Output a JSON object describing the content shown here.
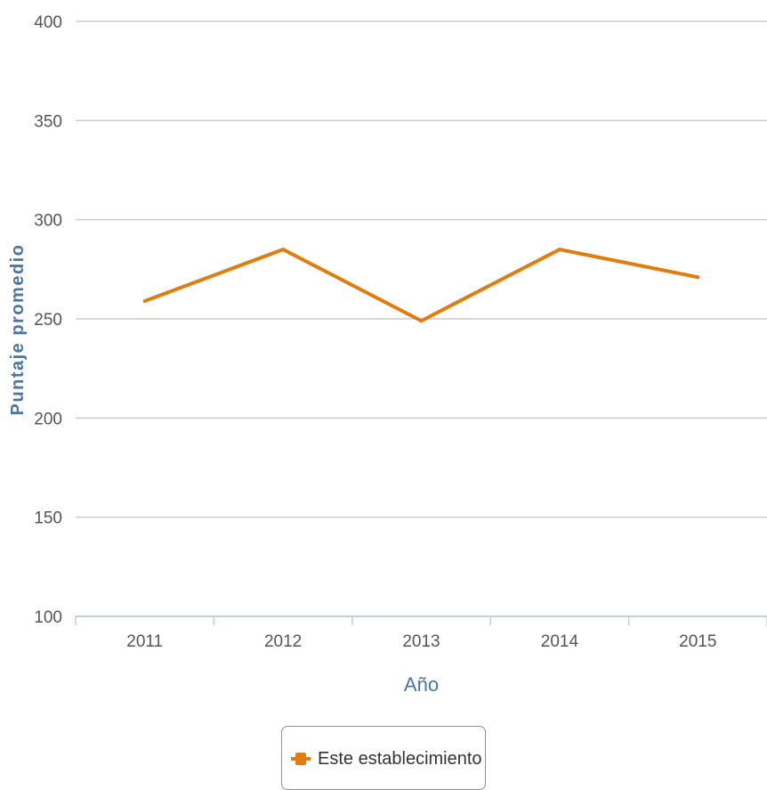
{
  "chart_data": {
    "type": "line",
    "title": "",
    "xlabel": "Año",
    "ylabel": "Puntaje promedio",
    "categories": [
      "2011",
      "2012",
      "2013",
      "2014",
      "2015"
    ],
    "ylim": [
      100,
      400
    ],
    "yticks": [
      "100",
      "150",
      "200",
      "250",
      "300",
      "350",
      "400"
    ],
    "grid": true,
    "legend_position": "bottom",
    "series": [
      {
        "name": "Este establecimiento",
        "values": [
          259,
          285,
          249,
          285,
          271
        ],
        "color": "#e07d10"
      }
    ],
    "colors": {
      "grid": "#cccccc",
      "x_axis": "#c0d0e0",
      "axis_title": "#4d759e",
      "tick_label": "#555555"
    }
  }
}
